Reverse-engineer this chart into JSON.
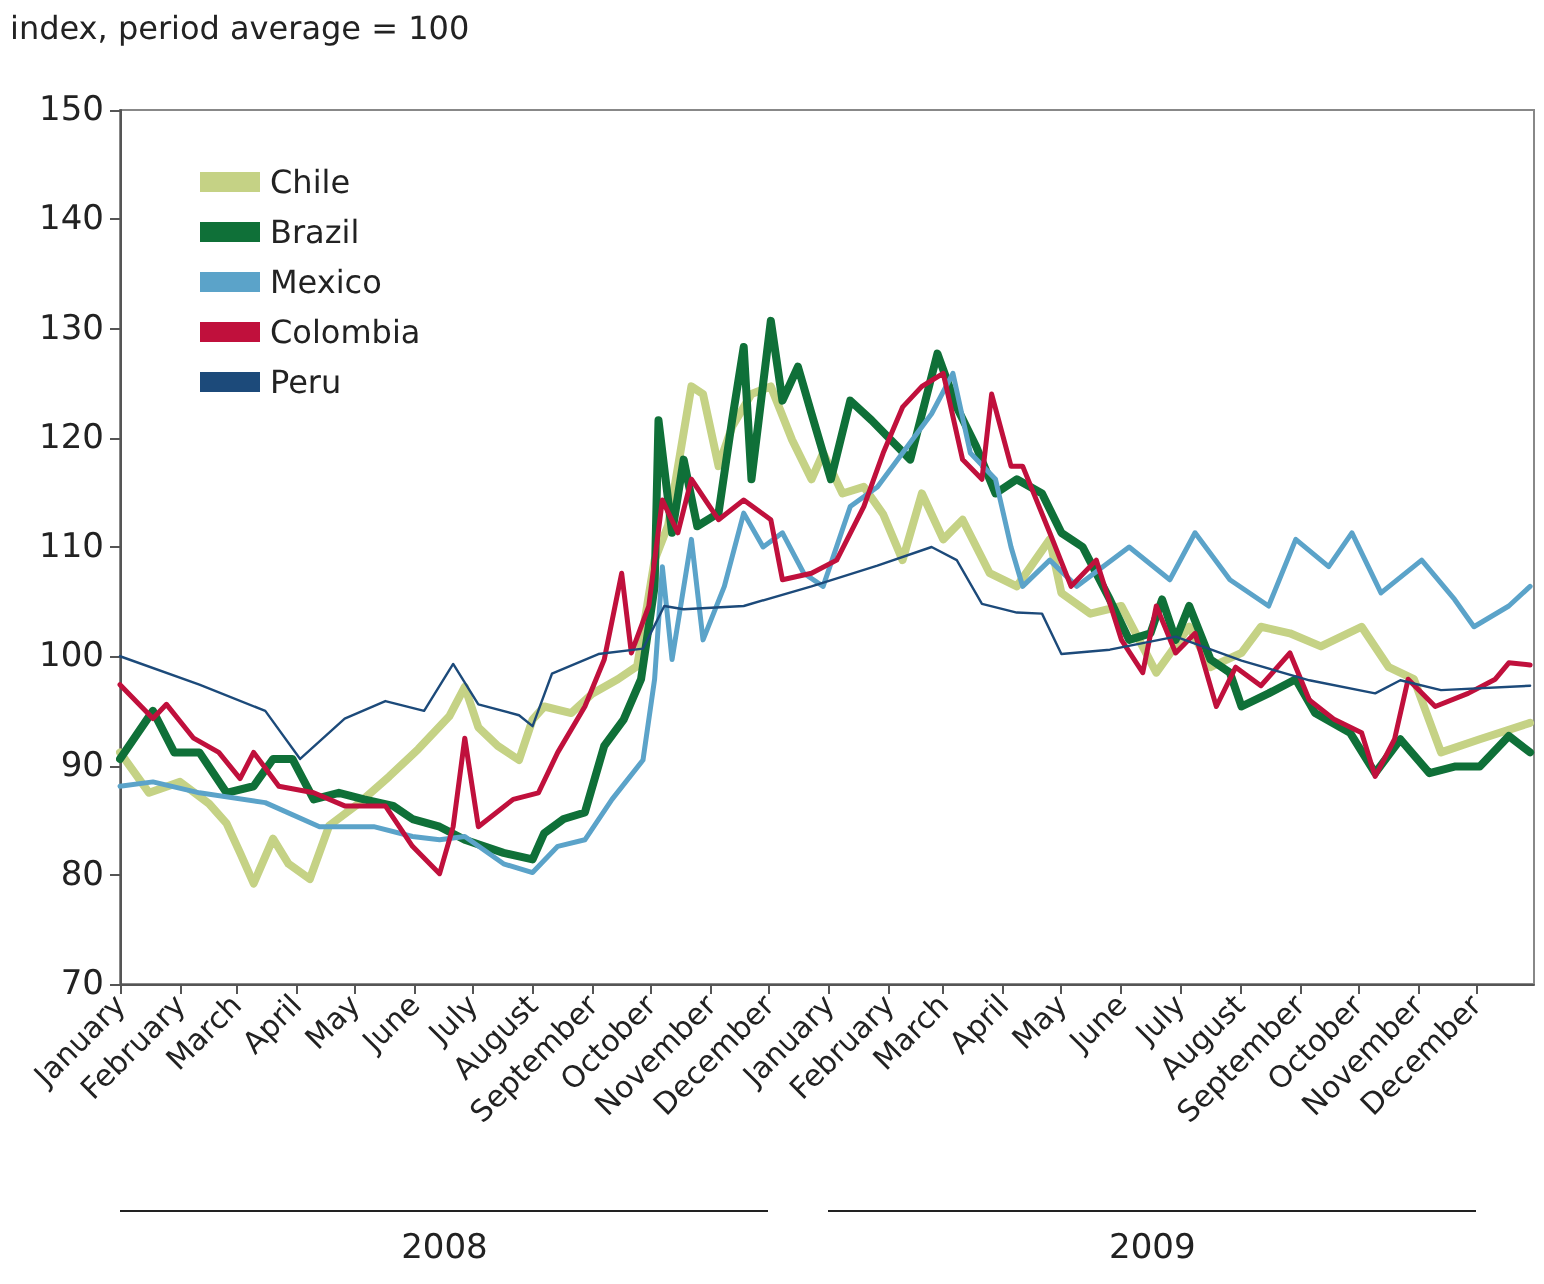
{
  "chart_data": {
    "type": "line",
    "ylabel": "index, period average = 100",
    "xlim": [
      "2008-01-01",
      "2009-12-31"
    ],
    "ylim": [
      70,
      150
    ],
    "yticks": [
      70,
      80,
      90,
      100,
      110,
      120,
      130,
      140,
      150
    ],
    "xticks": [
      {
        "value": "2008-01-01",
        "label": "January"
      },
      {
        "value": "2008-02-01",
        "label": "February"
      },
      {
        "value": "2008-03-01",
        "label": "March"
      },
      {
        "value": "2008-04-01",
        "label": "April"
      },
      {
        "value": "2008-05-01",
        "label": "May"
      },
      {
        "value": "2008-06-01",
        "label": "June"
      },
      {
        "value": "2008-07-01",
        "label": "July"
      },
      {
        "value": "2008-08-01",
        "label": "August"
      },
      {
        "value": "2008-09-01",
        "label": "September"
      },
      {
        "value": "2008-10-01",
        "label": "October"
      },
      {
        "value": "2008-11-01",
        "label": "November"
      },
      {
        "value": "2008-12-01",
        "label": "December"
      },
      {
        "value": "2009-01-01",
        "label": "January"
      },
      {
        "value": "2009-02-01",
        "label": "February"
      },
      {
        "value": "2009-03-01",
        "label": "March"
      },
      {
        "value": "2009-04-01",
        "label": "April"
      },
      {
        "value": "2009-05-01",
        "label": "May"
      },
      {
        "value": "2009-06-01",
        "label": "June"
      },
      {
        "value": "2009-07-01",
        "label": "July"
      },
      {
        "value": "2009-08-01",
        "label": "August"
      },
      {
        "value": "2009-09-01",
        "label": "September"
      },
      {
        "value": "2009-10-01",
        "label": "October"
      },
      {
        "value": "2009-11-01",
        "label": "November"
      },
      {
        "value": "2009-12-01",
        "label": "December"
      }
    ],
    "annotations": [
      "2008",
      "2009"
    ],
    "legend": "top left",
    "grid": false,
    "marker": "none",
    "series": [
      {
        "name": "Chile",
        "color": "#c5d285",
        "x": [
          "2008-01-01",
          "2008-01-16",
          "2008-02-01",
          "2008-02-16",
          "2008-02-25",
          "2008-03-03",
          "2008-03-10",
          "2008-03-20",
          "2008-03-28",
          "2008-04-08",
          "2008-04-18",
          "2008-05-03",
          "2008-05-19",
          "2008-06-03",
          "2008-06-19",
          "2008-06-27",
          "2008-07-04",
          "2008-07-14",
          "2008-07-25",
          "2008-08-01",
          "2008-08-07",
          "2008-08-21",
          "2008-09-01",
          "2008-09-14",
          "2008-09-24",
          "2008-10-03",
          "2008-10-10",
          "2008-10-22",
          "2008-10-28",
          "2008-11-05",
          "2008-11-12",
          "2008-11-22",
          "2008-12-02",
          "2008-12-13",
          "2008-12-23",
          "2008-12-29",
          "2009-01-08",
          "2009-01-19",
          "2009-01-29",
          "2009-02-08",
          "2009-02-18",
          "2009-03-01",
          "2009-03-11",
          "2009-03-25",
          "2009-04-08",
          "2009-04-25",
          "2009-05-01",
          "2009-05-16",
          "2009-06-01",
          "2009-06-19",
          "2009-07-06",
          "2009-07-17",
          "2009-08-02",
          "2009-08-12",
          "2009-08-27",
          "2009-09-12",
          "2009-10-03",
          "2009-10-17",
          "2009-10-30",
          "2009-11-13",
          "2009-12-03",
          "2009-12-29"
        ],
        "values": [
          91.2,
          87.5,
          88.5,
          86.5,
          84.7,
          82,
          79.2,
          83.3,
          81,
          79.6,
          84.5,
          86.5,
          89,
          91.5,
          94.5,
          97.2,
          93.5,
          91.8,
          90.5,
          94.2,
          95.4,
          94.8,
          96.6,
          97.9,
          99.1,
          108.8,
          112,
          124.7,
          124,
          117.4,
          121,
          124,
          124.7,
          119.8,
          116.2,
          118.6,
          114.9,
          115.5,
          113,
          108.8,
          114.9,
          110.7,
          112.5,
          107.6,
          106.4,
          110.7,
          105.8,
          103.9,
          104.6,
          98.5,
          102.7,
          99,
          100.3,
          102.7,
          102.1,
          100.9,
          102.7,
          99,
          97.9,
          91.2,
          92.4,
          93.9
        ]
      },
      {
        "name": "Brazil",
        "color": "#0f7038",
        "x": [
          "2008-01-01",
          "2008-01-18",
          "2008-01-29",
          "2008-02-11",
          "2008-02-25",
          "2008-03-10",
          "2008-03-20",
          "2008-03-30",
          "2008-04-10",
          "2008-04-23",
          "2008-05-06",
          "2008-05-21",
          "2008-05-31",
          "2008-06-14",
          "2008-06-27",
          "2008-07-17",
          "2008-08-01",
          "2008-08-07",
          "2008-08-17",
          "2008-08-28",
          "2008-09-07",
          "2008-09-17",
          "2008-09-26",
          "2008-10-03",
          "2008-10-05",
          "2008-10-12",
          "2008-10-18",
          "2008-10-25",
          "2008-11-05",
          "2008-11-12",
          "2008-11-18",
          "2008-11-22",
          "2008-12-02",
          "2008-12-08",
          "2008-12-16",
          "2008-12-23",
          "2009-01-02",
          "2009-01-12",
          "2009-01-23",
          "2009-02-02",
          "2009-02-12",
          "2009-02-26",
          "2009-03-08",
          "2009-03-18",
          "2009-03-28",
          "2009-04-08",
          "2009-04-21",
          "2009-05-01",
          "2009-05-12",
          "2009-05-26",
          "2009-06-05",
          "2009-06-16",
          "2009-06-22",
          "2009-06-29",
          "2009-07-06",
          "2009-07-17",
          "2009-07-27",
          "2009-08-02",
          "2009-08-16",
          "2009-08-30",
          "2009-09-09",
          "2009-09-27",
          "2009-10-10",
          "2009-10-23",
          "2009-11-07",
          "2009-11-20",
          "2009-12-03",
          "2009-12-18",
          "2009-12-29"
        ],
        "values": [
          90.6,
          95,
          91.2,
          91.2,
          87.5,
          88.1,
          90.6,
          90.6,
          86.9,
          87.5,
          86.9,
          86.3,
          85.1,
          84.4,
          83.2,
          82,
          81.4,
          83.8,
          85.1,
          85.7,
          91.8,
          94.2,
          97.9,
          106.4,
          121.6,
          111.3,
          118,
          111.9,
          113.1,
          121.6,
          128.3,
          116.2,
          130.7,
          123.4,
          126.5,
          122.2,
          116.2,
          123.4,
          121.6,
          119.8,
          118,
          127.7,
          122.8,
          119.2,
          114.9,
          116.2,
          114.9,
          111.3,
          110,
          105.2,
          101.5,
          102.1,
          105.2,
          101.5,
          104.6,
          99.7,
          98.5,
          95.4,
          96.6,
          97.9,
          94.8,
          93,
          89.3,
          92.4,
          89.3,
          89.9,
          89.9,
          92.7,
          91.2
        ]
      },
      {
        "name": "Mexico",
        "color": "#5ba3c9",
        "x": [
          "2008-01-01",
          "2008-01-18",
          "2008-02-11",
          "2008-03-16",
          "2008-04-13",
          "2008-05-11",
          "2008-05-31",
          "2008-06-14",
          "2008-06-27",
          "2008-07-17",
          "2008-08-01",
          "2008-08-14",
          "2008-08-28",
          "2008-09-11",
          "2008-09-27",
          "2008-10-03",
          "2008-10-07",
          "2008-10-12",
          "2008-10-22",
          "2008-10-28",
          "2008-11-08",
          "2008-11-18",
          "2008-11-28",
          "2008-12-08",
          "2008-12-19",
          "2008-12-29",
          "2009-01-12",
          "2009-01-26",
          "2009-02-08",
          "2009-02-23",
          "2009-03-06",
          "2009-03-15",
          "2009-03-28",
          "2009-04-05",
          "2009-04-11",
          "2009-04-25",
          "2009-05-09",
          "2009-06-05",
          "2009-06-26",
          "2009-07-09",
          "2009-07-27",
          "2009-08-16",
          "2009-08-30",
          "2009-09-16",
          "2009-09-28",
          "2009-10-13",
          "2009-11-03",
          "2009-11-20",
          "2009-11-30",
          "2009-12-18",
          "2009-12-29"
        ],
        "values": [
          88.1,
          88.5,
          87.5,
          86.6,
          84.4,
          84.4,
          83.5,
          83.2,
          83.5,
          81,
          80.2,
          82.6,
          83.2,
          86.9,
          90.5,
          97.9,
          108.2,
          99.7,
          110.7,
          101.5,
          106.4,
          113.1,
          110,
          111.3,
          107.6,
          106.4,
          113.7,
          115.5,
          118.6,
          122.2,
          125.9,
          118.6,
          116.2,
          110,
          106.4,
          108.8,
          106.4,
          110,
          107,
          111.3,
          107,
          104.6,
          110.7,
          108.2,
          111.3,
          105.8,
          108.8,
          105.2,
          102.7,
          104.6,
          106.4
        ]
      },
      {
        "name": "Colombia",
        "color": "#c0103c",
        "x": [
          "2008-01-01",
          "2008-01-18",
          "2008-01-25",
          "2008-02-08",
          "2008-02-21",
          "2008-03-03",
          "2008-03-10",
          "2008-03-23",
          "2008-04-10",
          "2008-04-26",
          "2008-05-17",
          "2008-05-31",
          "2008-06-14",
          "2008-06-21",
          "2008-06-27",
          "2008-07-04",
          "2008-07-22",
          "2008-08-04",
          "2008-08-14",
          "2008-08-28",
          "2008-09-07",
          "2008-09-16",
          "2008-09-21",
          "2008-09-30",
          "2008-10-07",
          "2008-10-15",
          "2008-10-22",
          "2008-11-05",
          "2008-11-18",
          "2008-12-02",
          "2008-12-08",
          "2008-12-23",
          "2009-01-05",
          "2009-01-19",
          "2009-01-29",
          "2009-02-08",
          "2009-02-18",
          "2009-03-01",
          "2009-03-11",
          "2009-03-21",
          "2009-03-26",
          "2009-04-05",
          "2009-04-11",
          "2009-04-25",
          "2009-05-06",
          "2009-05-19",
          "2009-06-01",
          "2009-06-12",
          "2009-06-19",
          "2009-06-29",
          "2009-07-09",
          "2009-07-20",
          "2009-07-30",
          "2009-08-12",
          "2009-08-27",
          "2009-09-06",
          "2009-09-19",
          "2009-10-03",
          "2009-10-10",
          "2009-10-20",
          "2009-10-27",
          "2009-11-10",
          "2009-11-27",
          "2009-12-11",
          "2009-12-18",
          "2009-12-29"
        ],
        "values": [
          97.4,
          94.3,
          95.6,
          92.5,
          91.2,
          88.8,
          91.2,
          88.1,
          87.5,
          86.3,
          86.3,
          82.6,
          80.1,
          84.4,
          92.5,
          84.4,
          86.9,
          87.5,
          91.2,
          95.4,
          99.7,
          107.6,
          100.3,
          104.6,
          114.3,
          111.3,
          116.2,
          112.5,
          114.3,
          112.5,
          107,
          107.6,
          108.8,
          113.7,
          118.6,
          122.8,
          124.7,
          125.9,
          118,
          116.2,
          124,
          117.4,
          117.4,
          111.3,
          106.4,
          108.8,
          101.5,
          98.5,
          104.6,
          100.3,
          102.1,
          95.4,
          99,
          97.3,
          100.3,
          96,
          94.2,
          93,
          89,
          92.4,
          97.9,
          95.4,
          96.6,
          97.9,
          99.4,
          99.2
        ]
      },
      {
        "name": "Peru",
        "color": "#1c4a7a",
        "x": [
          "2008-01-01",
          "2008-02-11",
          "2008-03-16",
          "2008-04-03",
          "2008-04-26",
          "2008-05-17",
          "2008-06-06",
          "2008-06-21",
          "2008-07-04",
          "2008-07-25",
          "2008-08-01",
          "2008-08-11",
          "2008-09-04",
          "2008-09-27",
          "2008-10-08",
          "2008-10-18",
          "2008-11-18",
          "2008-12-23",
          "2009-01-26",
          "2009-02-23",
          "2009-03-08",
          "2009-03-21",
          "2009-04-08",
          "2009-04-21",
          "2009-05-01",
          "2009-05-26",
          "2009-06-29",
          "2009-08-02",
          "2009-09-06",
          "2009-10-10",
          "2009-10-23",
          "2009-11-13",
          "2009-12-29"
        ],
        "values": [
          100,
          97.4,
          95,
          90.6,
          94.3,
          95.9,
          95,
          99.3,
          95.6,
          94.6,
          93.6,
          98.4,
          100.2,
          100.7,
          104.6,
          104.3,
          104.6,
          106.4,
          108.3,
          110,
          108.8,
          104.8,
          104,
          103.9,
          100.2,
          100.6,
          101.8,
          99.6,
          97.8,
          96.6,
          97.8,
          96.9,
          97.3
        ]
      }
    ]
  }
}
